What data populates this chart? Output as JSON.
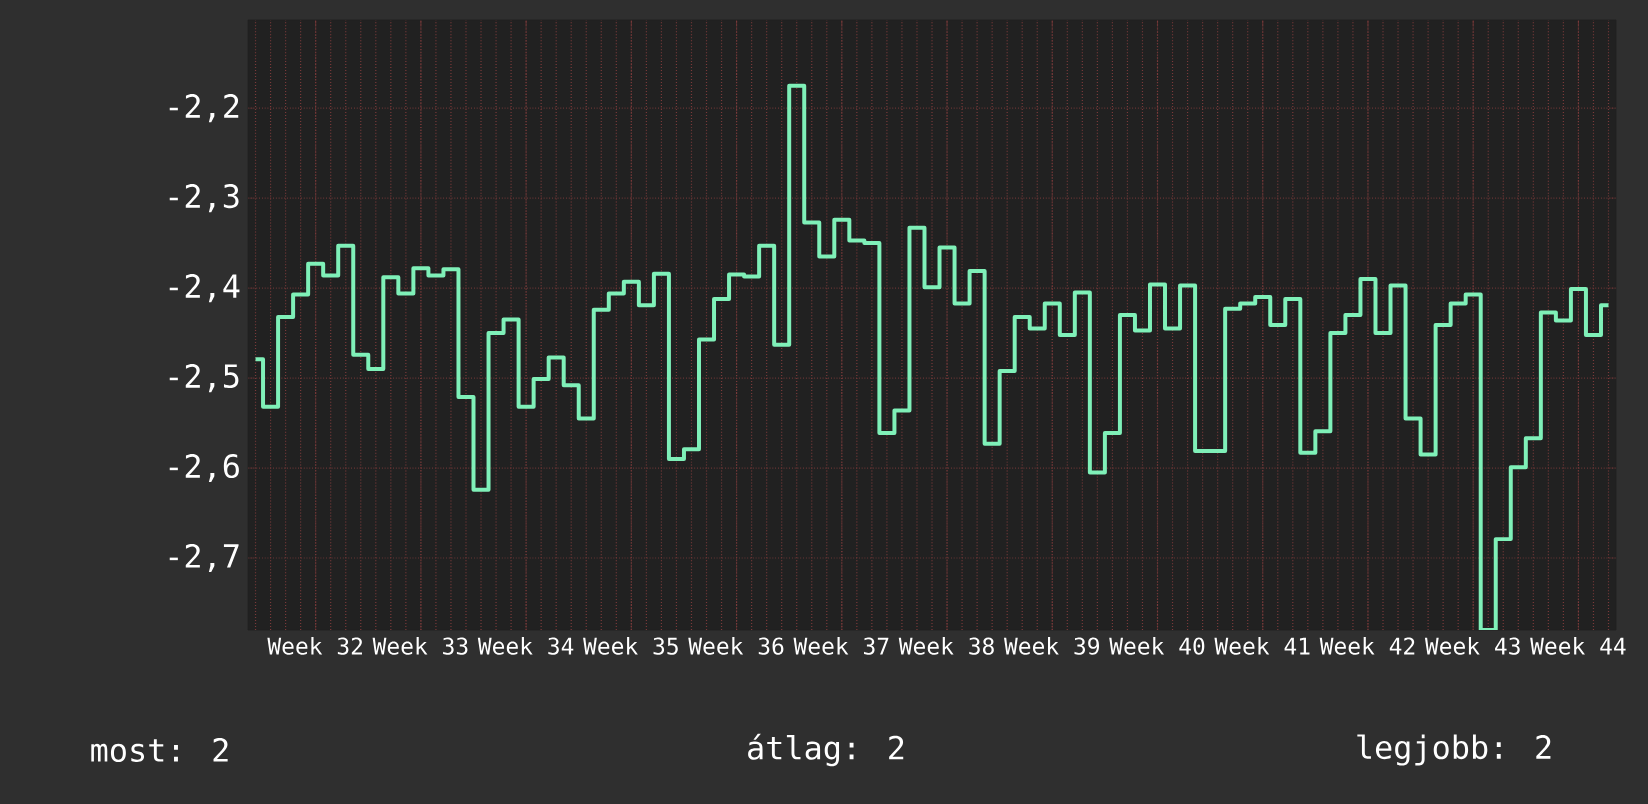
{
  "chart_data": {
    "type": "step",
    "categories": [
      null,
      null,
      null,
      null,
      "Week 32",
      null,
      null,
      null,
      null,
      null,
      null,
      "Week 33",
      null,
      null,
      null,
      null,
      null,
      null,
      "Week 34",
      null,
      null,
      null,
      null,
      null,
      null,
      "Week 35",
      null,
      null,
      null,
      null,
      null,
      null,
      "Week 36",
      null,
      null,
      null,
      null,
      null,
      null,
      "Week 37",
      null,
      null,
      null,
      null,
      null,
      null,
      "Week 38",
      null,
      null,
      null,
      null,
      null,
      null,
      "Week 39",
      null,
      null,
      null,
      null,
      null,
      null,
      "Week 40",
      null,
      null,
      null,
      null,
      null,
      null,
      "Week 41",
      null,
      null,
      null,
      null,
      null,
      null,
      "Week 42",
      null,
      null,
      null,
      null,
      null,
      null,
      "Week 43",
      null,
      null,
      null,
      null,
      null,
      null,
      "Week 44",
      null,
      null
    ],
    "series": [
      {
        "color": "#7ff0b8",
        "values": [
          -2.479,
          -2.532,
          -2.432,
          -2.407,
          -2.373,
          -2.386,
          -2.353,
          -2.474,
          -2.49,
          -2.388,
          -2.406,
          -2.378,
          -2.386,
          -2.379,
          -2.521,
          -2.624,
          -2.45,
          -2.435,
          -2.532,
          -2.501,
          -2.477,
          -2.508,
          -2.545,
          -2.424,
          -2.406,
          -2.393,
          -2.419,
          -2.384,
          -2.59,
          -2.579,
          -2.457,
          -2.412,
          -2.385,
          -2.387,
          -2.353,
          -2.463,
          -2.175,
          -2.327,
          -2.365,
          -2.324,
          -2.347,
          -2.35,
          -2.561,
          -2.536,
          -2.333,
          -2.399,
          -2.355,
          -2.417,
          -2.381,
          -2.573,
          -2.492,
          -2.432,
          -2.445,
          -2.417,
          -2.452,
          -2.405,
          -2.605,
          -2.561,
          -2.43,
          -2.447,
          -2.396,
          -2.445,
          -2.397,
          -2.581,
          -2.581,
          -2.423,
          -2.417,
          -2.41,
          -2.441,
          -2.412,
          -2.583,
          -2.559,
          -2.45,
          -2.43,
          -2.39,
          -2.45,
          -2.397,
          -2.545,
          -2.585,
          -2.441,
          -2.417,
          -2.407,
          -2.78,
          -2.679,
          -2.599,
          -2.567,
          -2.427,
          -2.436,
          -2.401,
          -2.452,
          -2.419
        ]
      }
    ],
    "ylim": [
      -2.78,
      -2.102
    ],
    "yticks": [
      {
        "value": -2.7,
        "label": "-2,7"
      },
      {
        "value": -2.6,
        "label": "-2,6"
      },
      {
        "value": -2.5,
        "label": "-2,5"
      },
      {
        "value": -2.4,
        "label": "-2,4"
      },
      {
        "value": -2.3,
        "label": "-2,3"
      },
      {
        "value": -2.2,
        "label": "-2,2"
      }
    ],
    "grid": true,
    "marker": "none",
    "line_style": "solid",
    "annotations": [
      "most: 2",
      "átlag: 2",
      "legjobb: 2"
    ]
  }
}
